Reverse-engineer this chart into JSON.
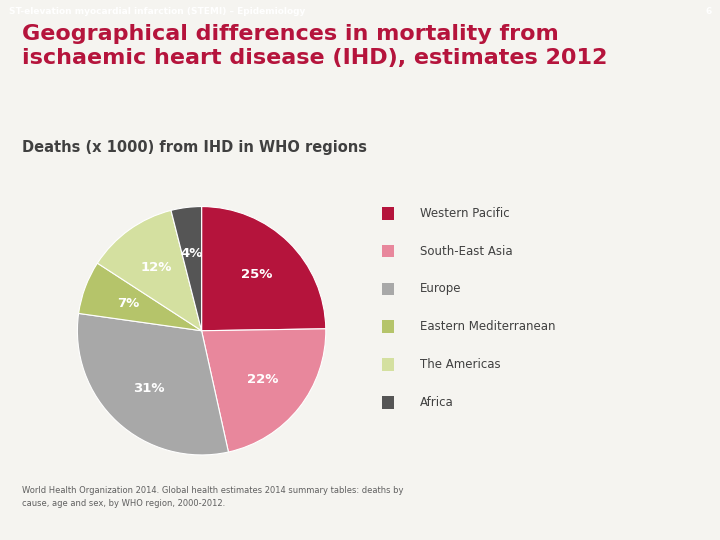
{
  "title_main": "Geographical differences in mortality from\nischaemic heart disease (IHD), estimates 2012",
  "subtitle": "Deaths (x 1000) from IHD in WHO regions",
  "header_text": "ST-elevation myocardial infarction (STEMI) – Epidemiology",
  "header_number": "6",
  "header_bg": "#c0174c",
  "header_text_color": "#ffffff",
  "background_color": "#f5f4f0",
  "title_color": "#b5143c",
  "subtitle_color": "#404040",
  "labels": [
    "Western Pacific",
    "South-East Asia",
    "Europe",
    "Eastern Mediterranean",
    "The Americas",
    "Africa"
  ],
  "values": [
    25,
    22,
    31,
    7,
    12,
    4
  ],
  "colors": [
    "#b5143c",
    "#e8879c",
    "#a8a8a8",
    "#b5c46a",
    "#d4e0a0",
    "#555555"
  ],
  "pct_labels": [
    "25%",
    "22%",
    "31%",
    "7%",
    "12%",
    "4%"
  ],
  "startangle": 90,
  "counterclock": false,
  "footnote": "World Health Organization 2014. Global health estimates 2014 summary tables: deaths by\ncause, age and sex, by WHO region, 2000-2012.",
  "legend_text_color": "#404040",
  "pct_label_color": "#ffffff",
  "bottom_bar_color": "#888888"
}
